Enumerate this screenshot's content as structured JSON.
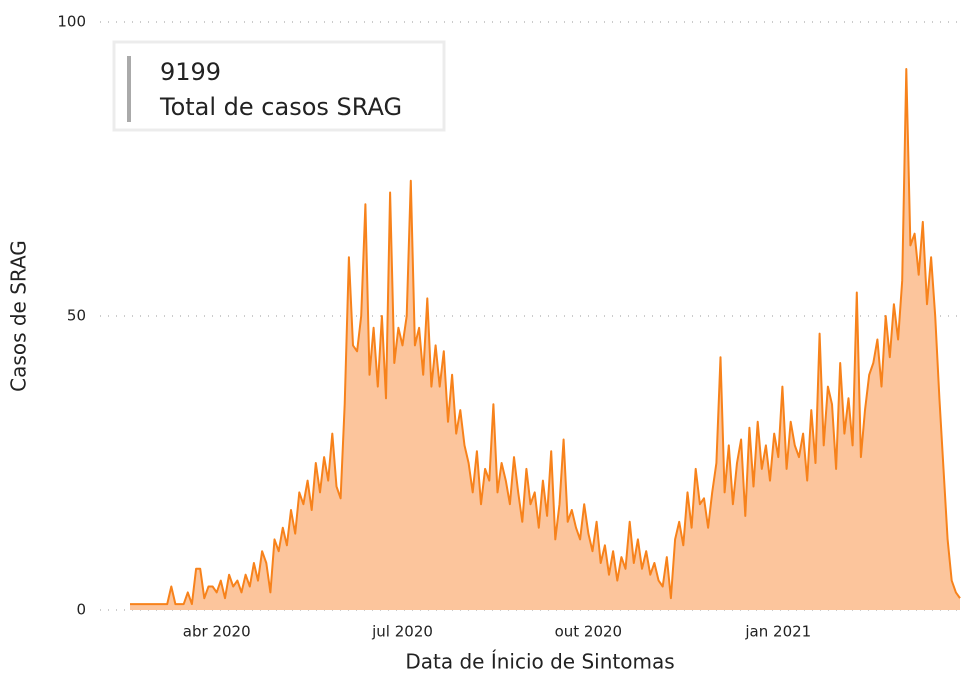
{
  "kpi": {
    "value": "9199",
    "label": "Total de casos SRAG"
  },
  "chart_data": {
    "type": "area",
    "xlabel": "Data de Ínicio de Sintomas",
    "ylabel": "Casos de SRAG",
    "categories": [
      null,
      null,
      null,
      null,
      null,
      null,
      null,
      null,
      null,
      null,
      null,
      null,
      null,
      null,
      null,
      null,
      null,
      null,
      null,
      null,
      null,
      "abr 2020",
      null,
      null,
      null,
      null,
      null,
      null,
      null,
      null,
      null,
      null,
      null,
      null,
      null,
      null,
      null,
      null,
      null,
      null,
      null,
      null,
      null,
      null,
      null,
      null,
      null,
      null,
      null,
      null,
      null,
      null,
      null,
      null,
      null,
      null,
      null,
      null,
      null,
      null,
      null,
      null,
      null,
      null,
      null,
      null,
      "jul 2020",
      null,
      null,
      null,
      null,
      null,
      null,
      null,
      null,
      null,
      null,
      null,
      null,
      null,
      null,
      null,
      null,
      null,
      null,
      null,
      null,
      null,
      null,
      null,
      null,
      null,
      null,
      null,
      null,
      null,
      null,
      null,
      null,
      null,
      null,
      null,
      null,
      null,
      null,
      null,
      null,
      null,
      null,
      null,
      null,
      "out 2020",
      null,
      null,
      null,
      null,
      null,
      null,
      null,
      null,
      null,
      null,
      null,
      null,
      null,
      null,
      null,
      null,
      null,
      null,
      null,
      null,
      null,
      null,
      null,
      null,
      null,
      null,
      null,
      null,
      null,
      null,
      null,
      null,
      null,
      null,
      null,
      null,
      null,
      null,
      null,
      null,
      null,
      null,
      null,
      null,
      null,
      "jan 2021",
      null,
      null,
      null,
      null,
      null,
      null,
      null,
      null,
      null,
      null,
      null,
      null,
      null,
      null,
      null,
      null,
      null,
      null,
      null,
      null,
      null,
      null,
      null,
      null,
      null,
      null,
      null,
      null,
      null,
      null,
      null,
      null,
      null,
      null,
      null,
      null,
      null,
      null,
      null,
      null,
      null,
      null,
      null,
      null
    ],
    "values": [
      1,
      1,
      1,
      1,
      1,
      1,
      1,
      1,
      1,
      1,
      4,
      1,
      1,
      1,
      3,
      1,
      7,
      7,
      2,
      4,
      4,
      3,
      5,
      2,
      6,
      4,
      5,
      3,
      6,
      4,
      8,
      5,
      10,
      8,
      3,
      12,
      10,
      14,
      11,
      17,
      13,
      20,
      18,
      22,
      17,
      25,
      20,
      26,
      22,
      30,
      21,
      19,
      35,
      60,
      45,
      44,
      50,
      69,
      40,
      48,
      38,
      50,
      36,
      71,
      42,
      48,
      45,
      50,
      73,
      45,
      48,
      40,
      53,
      38,
      45,
      38,
      44,
      32,
      40,
      30,
      34,
      28,
      25,
      20,
      27,
      18,
      24,
      22,
      35,
      20,
      25,
      22,
      18,
      26,
      20,
      15,
      24,
      18,
      20,
      14,
      22,
      16,
      27,
      12,
      18,
      29,
      15,
      17,
      14,
      12,
      18,
      13,
      10,
      15,
      8,
      11,
      6,
      10,
      5,
      9,
      7,
      15,
      8,
      12,
      7,
      10,
      6,
      8,
      5,
      4,
      9,
      2,
      12,
      15,
      11,
      20,
      14,
      24,
      18,
      19,
      14,
      20,
      25,
      43,
      20,
      28,
      18,
      25,
      29,
      16,
      31,
      21,
      32,
      24,
      28,
      22,
      30,
      26,
      38,
      24,
      32,
      28,
      26,
      30,
      22,
      34,
      25,
      47,
      28,
      38,
      35,
      24,
      42,
      30,
      36,
      28,
      54,
      26,
      34,
      40,
      42,
      46,
      38,
      50,
      43,
      52,
      46,
      56,
      92,
      62,
      64,
      57,
      66,
      52,
      60,
      50,
      36,
      24,
      12,
      5,
      3,
      2
    ],
    "color": "#f7821b",
    "fill": "#fcc59c",
    "ylim": [
      0,
      100
    ],
    "yticks": [
      0,
      50,
      100
    ],
    "grid": true
  }
}
